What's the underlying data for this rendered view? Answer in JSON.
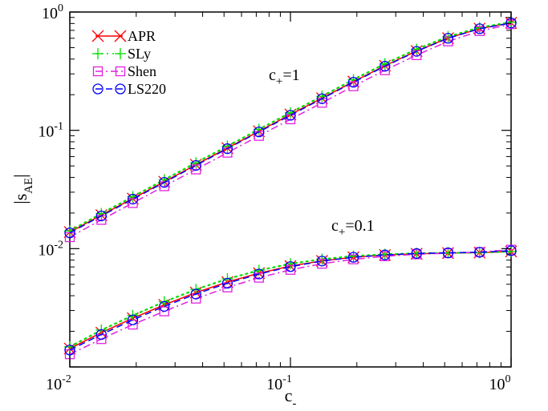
{
  "chart_data": {
    "type": "line",
    "xscale": "log",
    "yscale": "log",
    "xlim": [
      0.01,
      1
    ],
    "ylim": [
      0.001,
      1
    ],
    "grid": false,
    "legend_position": "top-left",
    "xlabel": {
      "main": "c",
      "sub": "-"
    },
    "ylabel": {
      "main": "|s",
      "sub": "AE",
      "suffix": "|"
    },
    "x_ticks": [
      {
        "base": "10",
        "exp": "-2"
      },
      {
        "base": "10",
        "exp": "-1"
      },
      {
        "base": "10",
        "exp": "0"
      }
    ],
    "y_ticks": [
      {
        "base": "10",
        "exp": "-2"
      },
      {
        "base": "10",
        "exp": "-1"
      },
      {
        "base": "10",
        "exp": "0"
      }
    ],
    "x": [
      0.01,
      0.0139,
      0.0193,
      0.0268,
      0.0373,
      0.0518,
      0.072,
      0.1,
      0.139,
      0.193,
      0.268,
      0.373,
      0.518,
      0.72,
      1.0
    ],
    "groups": [
      {
        "label": {
          "main": "c",
          "sub": "+",
          "rest": "=1"
        },
        "series": [
          {
            "name": "APR",
            "values": [
              0.0138,
              0.0192,
              0.0265,
              0.0368,
              0.0512,
              0.0708,
              0.0982,
              0.136,
              0.187,
              0.258,
              0.352,
              0.468,
              0.602,
              0.724,
              0.81
            ]
          },
          {
            "name": "SLy",
            "values": [
              0.0141,
              0.0198,
              0.0275,
              0.0382,
              0.0532,
              0.0735,
              0.102,
              0.141,
              0.194,
              0.268,
              0.365,
              0.485,
              0.62,
              0.74,
              0.82
            ]
          },
          {
            "name": "Shen",
            "values": [
              0.0125,
              0.0175,
              0.0243,
              0.0337,
              0.0467,
              0.0647,
              0.0897,
              0.124,
              0.171,
              0.236,
              0.322,
              0.432,
              0.565,
              0.69,
              0.79
            ]
          },
          {
            "name": "LS220",
            "values": [
              0.0136,
              0.0189,
              0.0262,
              0.0363,
              0.0505,
              0.07,
              0.097,
              0.134,
              0.185,
              0.255,
              0.348,
              0.465,
              0.6,
              0.722,
              0.808
            ]
          }
        ]
      },
      {
        "label": {
          "main": "c",
          "sub": "+",
          "rest": "=0.1"
        },
        "series": [
          {
            "name": "APR",
            "values": [
              0.00143,
              0.00195,
              0.00258,
              0.00335,
              0.00425,
              0.00522,
              0.0062,
              0.00712,
              0.00788,
              0.00845,
              0.00883,
              0.00905,
              0.00917,
              0.00925,
              0.00945
            ]
          },
          {
            "name": "SLy",
            "values": [
              0.00148,
              0.00205,
              0.00272,
              0.00355,
              0.00452,
              0.00555,
              0.00655,
              0.00745,
              0.00815,
              0.00865,
              0.00895,
              0.00912,
              0.0092,
              0.00925,
              0.00945
            ]
          },
          {
            "name": "Shen",
            "values": [
              0.00128,
              0.00172,
              0.00228,
              0.00295,
              0.00378,
              0.0047,
              0.00568,
              0.00662,
              0.00745,
              0.00812,
              0.00862,
              0.00895,
              0.00915,
              0.00935,
              0.0098
            ]
          },
          {
            "name": "LS220",
            "values": [
              0.00139,
              0.00188,
              0.0025,
              0.00325,
              0.00413,
              0.0051,
              0.0061,
              0.00705,
              0.00785,
              0.00845,
              0.00885,
              0.0091,
              0.00922,
              0.00932,
              0.0096
            ]
          }
        ]
      }
    ],
    "series_styles": [
      {
        "name": "APR",
        "color": "#ff0000",
        "dash": "",
        "marker": "cross"
      },
      {
        "name": "SLy",
        "color": "#00dd00",
        "dash": "2 5",
        "marker": "plus"
      },
      {
        "name": "Shen",
        "color": "#e020e0",
        "dash": "9 4 2 4",
        "marker": "square"
      },
      {
        "name": "LS220",
        "color": "#0000ff",
        "dash": "8 5",
        "marker": "circle"
      }
    ]
  }
}
